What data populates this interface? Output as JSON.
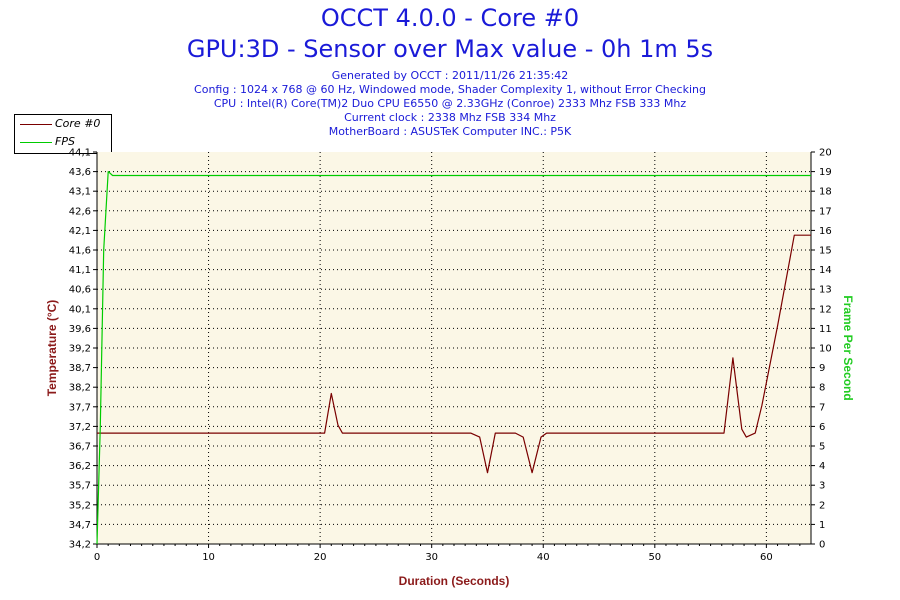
{
  "header": {
    "title": "OCCT 4.0.0 - Core #0",
    "subtitle": "GPU:3D - Sensor over Max value - 0h 1m 5s",
    "info_lines": [
      "Generated by OCCT : 2011/11/26 21:35:42",
      "Config : 1024 x 768 @ 60 Hz, Windowed mode, Shader Complexity 1, without Error Checking",
      "CPU : Intel(R) Core(TM)2 Duo CPU E6550 @ 2.33GHz (Conroe) 2333 Mhz FSB 333 Mhz",
      "Current clock : 2338 Mhz FSB 334 Mhz",
      "MotherBoard : ASUSTeK Computer INC.: P5K"
    ]
  },
  "colors": {
    "core": "#7a0000",
    "fps": "#00cc00",
    "plot_bg": "#fbf7e6",
    "title": "#1a1ad8",
    "axis_label_left": "#8b1a1a",
    "axis_label_right": "#22cc22",
    "axis_label_bottom": "#8b1a1a"
  },
  "chart_data": {
    "type": "line",
    "xlabel": "Duration (Seconds)",
    "ylabel": "Temperature (°C)",
    "y2label": "Frame Per Second",
    "xlim": [
      0,
      64
    ],
    "ylim": [
      34.2,
      44.1
    ],
    "y2lim": [
      0,
      20
    ],
    "x_ticks": [
      "0",
      "10",
      "20",
      "30",
      "40",
      "50",
      "60"
    ],
    "y_ticks": [
      "34,2",
      "34,7",
      "35,2",
      "35,7",
      "36,2",
      "36,7",
      "37,2",
      "37,7",
      "38,2",
      "38,7",
      "39,2",
      "39,6",
      "40,1",
      "40,6",
      "41,1",
      "41,6",
      "42,1",
      "42,6",
      "43,1",
      "43,6",
      "44,1"
    ],
    "y2_ticks": [
      "0",
      "1",
      "2",
      "3",
      "4",
      "5",
      "6",
      "7",
      "8",
      "9",
      "10",
      "11",
      "12",
      "13",
      "14",
      "15",
      "16",
      "17",
      "18",
      "19",
      "20"
    ],
    "grid": true,
    "legend_position": "top-left",
    "series": [
      {
        "name": "Core #0",
        "axis": "left",
        "x": [
          0,
          10,
          20,
          20.4,
          21,
          21.6,
          22,
          30,
          33.5,
          34.3,
          35,
          35.7,
          36.3,
          37.5,
          38.2,
          39,
          39.8,
          40.3,
          50,
          55.5,
          56.2,
          57,
          57.8,
          58.2,
          59,
          59.6,
          61,
          62.5,
          63.5,
          64
        ],
        "values": [
          37.0,
          37.0,
          37.0,
          37.0,
          38.0,
          37.2,
          37.0,
          37.0,
          37.0,
          36.9,
          36.0,
          37.0,
          37.0,
          37.0,
          36.9,
          36.0,
          36.9,
          37.0,
          37.0,
          37.0,
          37.0,
          38.9,
          37.1,
          36.9,
          37.0,
          37.7,
          39.7,
          42.0,
          42.0,
          42.0
        ]
      },
      {
        "name": "FPS",
        "axis": "right",
        "x": [
          0,
          0.3,
          0.6,
          1.0,
          1.4,
          2,
          10,
          20,
          30,
          40,
          50,
          60,
          64
        ],
        "values": [
          0,
          6,
          15,
          19,
          18.8,
          18.8,
          18.8,
          18.8,
          18.8,
          18.8,
          18.8,
          18.8,
          18.8
        ]
      }
    ]
  }
}
